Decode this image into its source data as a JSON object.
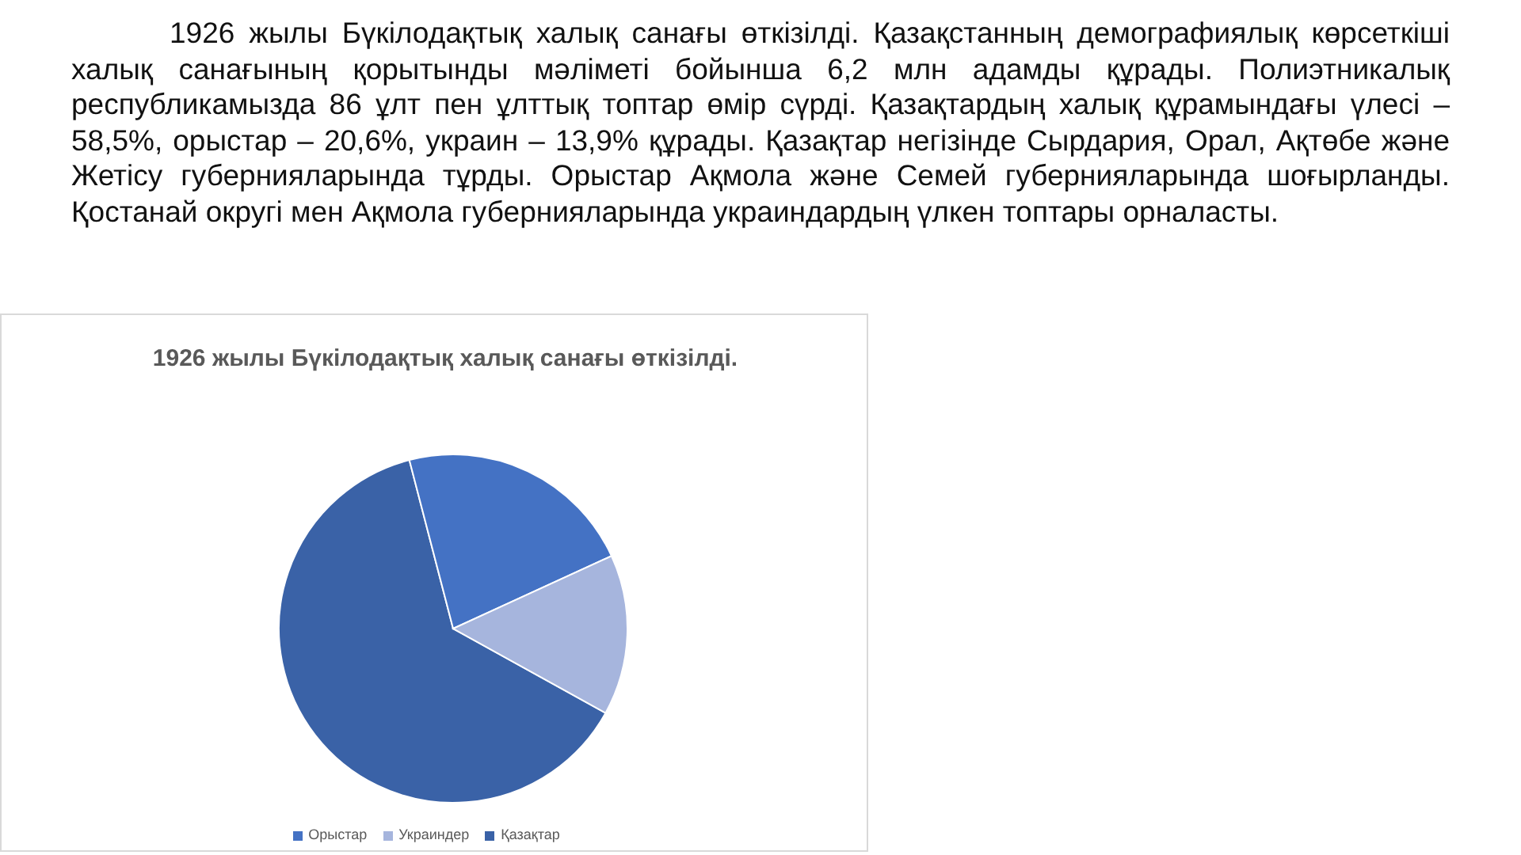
{
  "chart_data": {
    "type": "pie",
    "title": "1926 жылы Бүкілодақтық халық санағы өткізілді.",
    "subtitle": "1926 жылы Бүкілодақтық халық санағы өткізілді. Қазақстанның демографиялық көрсеткіші халық санағының қорытынды мәліметі бойынша 6,2 млн адамды құрады. Полиэтникалық республикамызда 86 ұлт пен ұлттық топтар өмір сүрді. Қазақтардың халық құрамындағы үлесі – 58,5%, орыстар – 20,6%, украин – 13,9% құрады. Қазақтар негізінде Сырдария, Орал, Ақтөбе және Жетісу губернияларында тұрды. Орыстар Ақмола және Семей губернияларында шоғырланды. Қостанай округі мен Ақмола губернияларында украиндардың үлкен топтары орналасты.",
    "categories": [
      "Қазақтар",
      "Орыстар",
      "Украиндер"
    ],
    "values": [
      62.9,
      22.2,
      14.9
    ],
    "colors": [
      "#3a62a7",
      "#4472c4",
      "#a6b5dd"
    ],
    "legend": "bottom"
  }
}
